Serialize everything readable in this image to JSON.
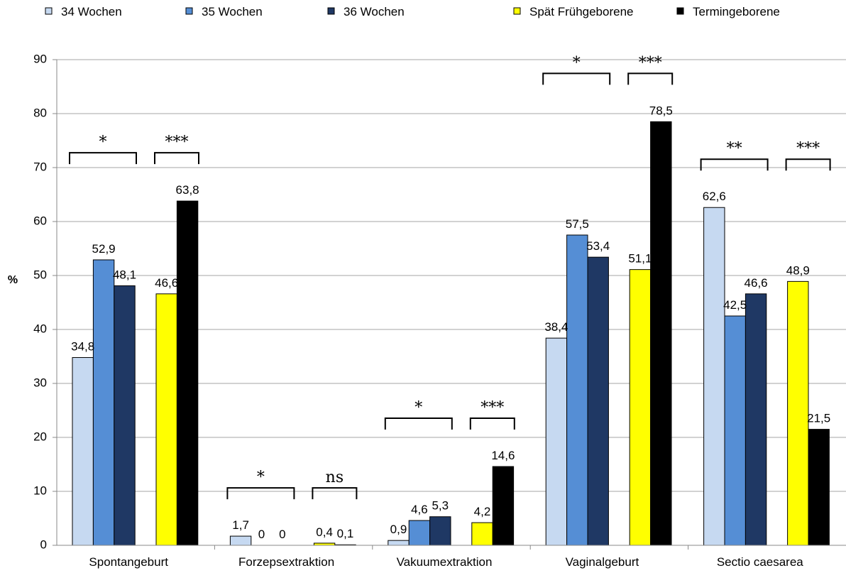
{
  "chart_data": {
    "type": "bar",
    "ylabel": "%",
    "ylim": [
      0,
      90
    ],
    "yticks": [
      "0",
      "10",
      "20",
      "30",
      "40",
      "50",
      "60",
      "70",
      "80",
      "90"
    ],
    "grid": true,
    "legend_position": "top",
    "categories": [
      "Spontangeburt",
      "Forzepsextraktion",
      "Vakuumextraktion",
      "Vaginalgeburt",
      "Sectio caesarea"
    ],
    "series": [
      {
        "name": "34 Wochen",
        "color": "#c6d9f1",
        "values": [
          34.8,
          1.7,
          0.9,
          38.4,
          62.6
        ],
        "labels": [
          "34,8",
          "1,7",
          "0,9",
          "38,4",
          "62,6"
        ]
      },
      {
        "name": "35 Wochen",
        "color": "#558ed5",
        "values": [
          52.9,
          0,
          4.6,
          57.5,
          42.5
        ],
        "labels": [
          "52,9",
          "0",
          "4,6",
          "57,5",
          "42,5"
        ]
      },
      {
        "name": "36 Wochen",
        "color": "#1f3864",
        "values": [
          48.1,
          0,
          5.3,
          53.4,
          46.6
        ],
        "labels": [
          "48,1",
          "0",
          "5,3",
          "53,4",
          "46,6"
        ]
      },
      {
        "name": "Spät Frühgeborene",
        "color": "#ffff00",
        "values": [
          46.6,
          0.4,
          4.2,
          51.1,
          48.9
        ],
        "labels": [
          "46,6",
          "0,4",
          "4,2",
          "51,1",
          "48,9"
        ]
      },
      {
        "name": "Termingeborene",
        "color": "#000000",
        "values": [
          63.8,
          0.1,
          14.6,
          78.5,
          21.5
        ],
        "labels": [
          "63,8",
          "0,1",
          "14,6",
          "78,5",
          "21,5"
        ]
      }
    ],
    "significance": [
      {
        "category": "Spontangeburt",
        "preterm": "*",
        "late_vs_term": "***"
      },
      {
        "category": "Forzepsextraktion",
        "preterm": "*",
        "late_vs_term": "ns"
      },
      {
        "category": "Vakuumextraktion",
        "preterm": "*",
        "late_vs_term": "***"
      },
      {
        "category": "Vaginalgeburt",
        "preterm": "*",
        "late_vs_term": "***"
      },
      {
        "category": "Sectio caesarea",
        "preterm": "**",
        "late_vs_term": "***"
      }
    ]
  }
}
